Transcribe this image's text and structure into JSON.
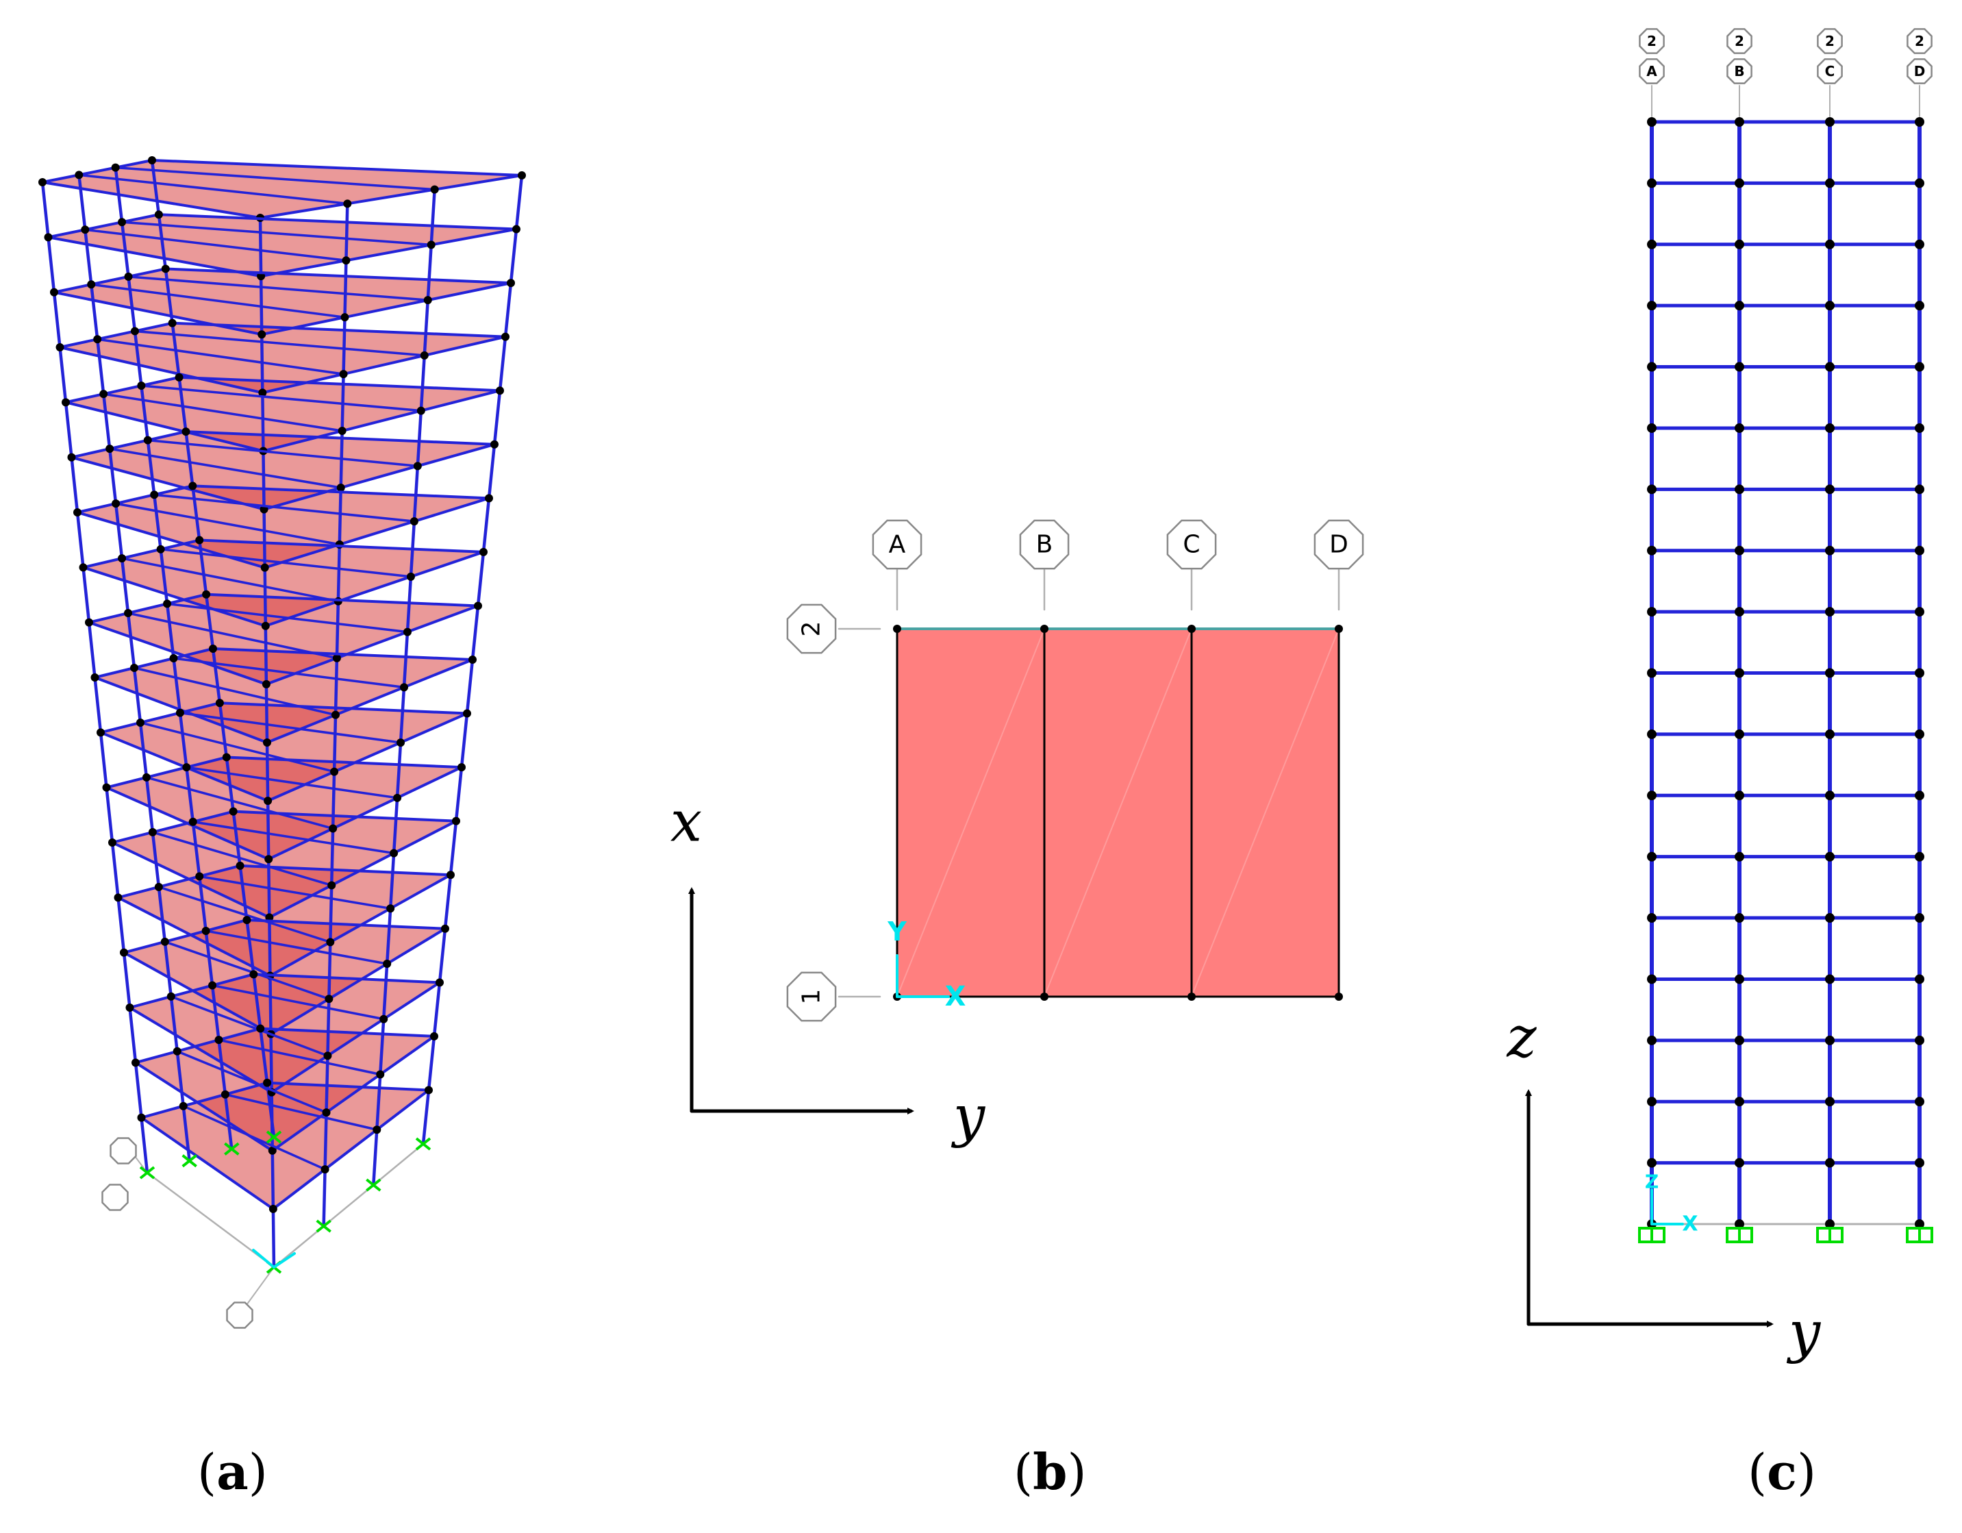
{
  "figure": {
    "panels": [
      {
        "id": "a",
        "label_open": "(",
        "label_letter": "a",
        "label_close": ")"
      },
      {
        "id": "b",
        "label_open": "(",
        "label_letter": "b",
        "label_close": ")"
      },
      {
        "id": "c",
        "label_open": "(",
        "label_letter": "c",
        "label_close": ")"
      }
    ]
  },
  "model": {
    "stories": 18,
    "bays": 3,
    "plan_grid_columns": [
      "A",
      "B",
      "C",
      "D"
    ],
    "plan_grid_rows": [
      "1",
      "2"
    ],
    "elevation_grid_row": "2",
    "elevation_grid_columns": [
      "A",
      "B",
      "C",
      "D"
    ],
    "local_axis_plan": [
      "Y",
      "X"
    ],
    "local_axis_elevation": [
      "Z",
      "X"
    ]
  },
  "axes": {
    "plan": {
      "vertical": "x",
      "horizontal": "y"
    },
    "elevation": {
      "vertical": "z",
      "horizontal": "y"
    }
  },
  "colors": {
    "frame": "#2323d8",
    "joint": "#000000",
    "slab_fill": "#d94545",
    "slab_plan": "#ff7f7f",
    "support": "#00dd00",
    "local_axis": "#00e5ee",
    "grid_line": "#b0b0b0",
    "plan_top_edge": "#4aa3a3"
  }
}
